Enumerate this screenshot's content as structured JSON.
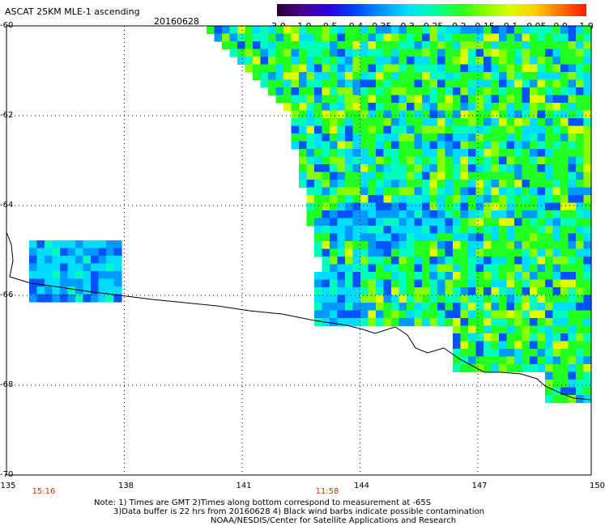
{
  "header": {
    "title": "ASCAT 25KM MLE-1 ascending",
    "date": "20160628"
  },
  "colorbar": {
    "labels": [
      "-3.0",
      "-1.0",
      "-0.5",
      "-0.4",
      "-0.35",
      "-0.3",
      "-0.25",
      "-0.2",
      "-0.15",
      "-0.1",
      "-0.05",
      "0.0",
      "1.0"
    ],
    "colors": [
      "#2a0030",
      "#4a0090",
      "#2a00e0",
      "#0040ff",
      "#0090ff",
      "#00ddff",
      "#00ffb0",
      "#20ff30",
      "#80ff00",
      "#d8ff00",
      "#ffd000",
      "#ff7000",
      "#ff1a00"
    ]
  },
  "map": {
    "y_axis_labels": [
      "-60",
      "-62",
      "-64",
      "-66",
      "-68",
      "-70"
    ],
    "x_axis_labels": [
      "135",
      "138",
      "141",
      "144",
      "147",
      "150"
    ],
    "times": [
      "15:16",
      "11:58"
    ],
    "colors": {
      "grid": "#000000",
      "coast": "#000000",
      "time_text": "#cc3300"
    }
  },
  "footer": {
    "line1": "Note: 1) Times are GMT 2)Times along bottom correspond to measurement at -65S",
    "line2": "3)Data buffer is 22 hrs from 20160628 4) Black wind barbs indicate possible contamination",
    "line3": "NOAA/NESDIS/Center for Satellite Applications and Research"
  }
}
